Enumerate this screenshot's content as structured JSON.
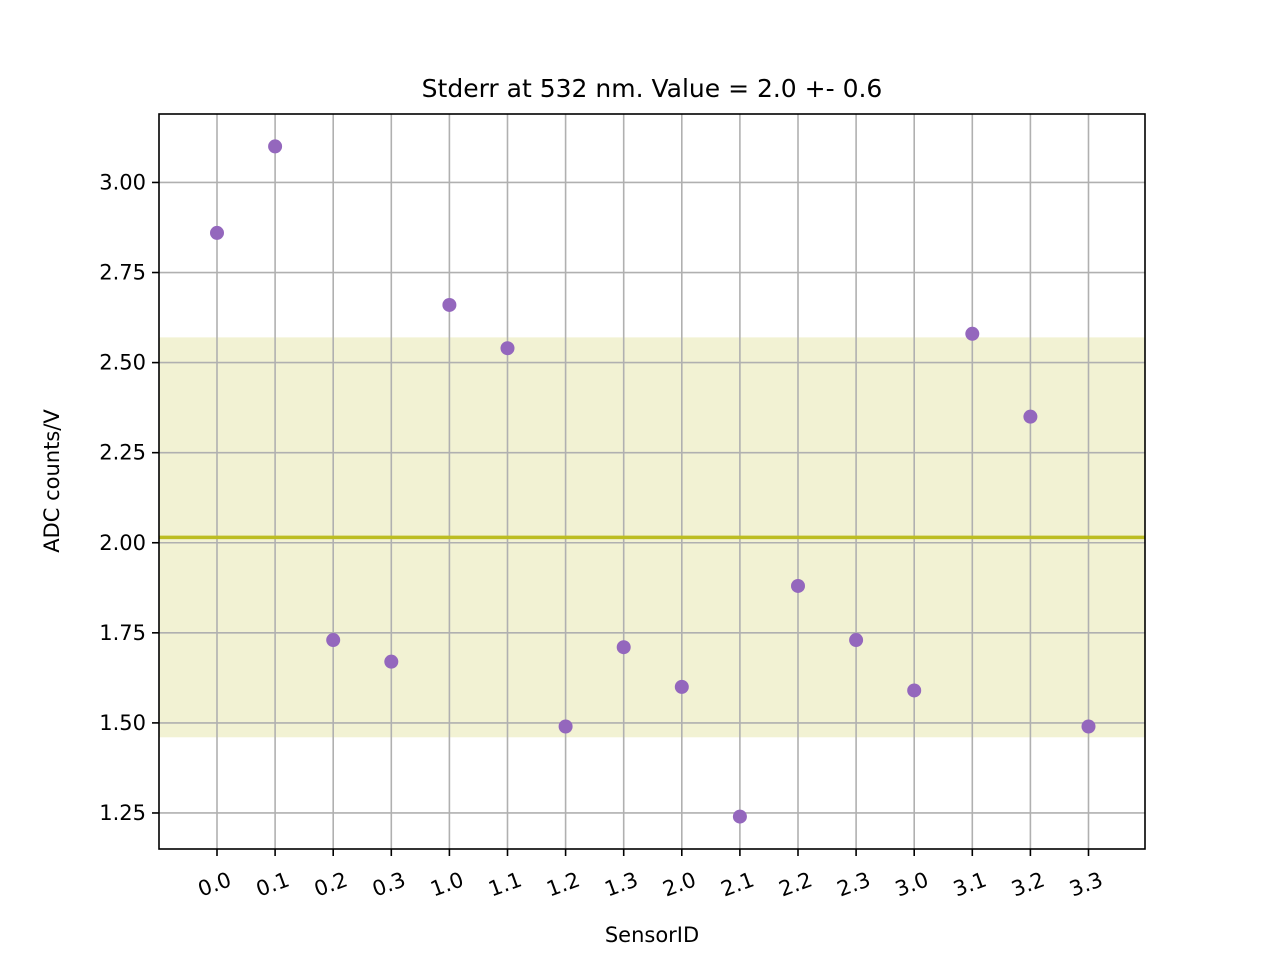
{
  "chart_data": {
    "type": "scatter",
    "title": "Stderr at 532 nm. Value = 2.0 +- 0.6",
    "xlabel": "SensorID",
    "ylabel": "ADC counts/V",
    "categories": [
      "0.0",
      "0.1",
      "0.2",
      "0.3",
      "1.0",
      "1.1",
      "1.2",
      "1.3",
      "2.0",
      "2.1",
      "2.2",
      "2.3",
      "3.0",
      "3.1",
      "3.2",
      "3.3"
    ],
    "series": [
      {
        "values": [
          2.86,
          3.1,
          1.73,
          1.67,
          2.66,
          2.54,
          1.49,
          1.71,
          1.6,
          1.24,
          1.88,
          1.73,
          1.59,
          2.58,
          2.35,
          1.49
        ],
        "color": "#9467bd"
      }
    ],
    "mean_line": {
      "value": 2.015,
      "color": "#bcbd22"
    },
    "band": {
      "lower": 1.46,
      "upper": 2.57,
      "color": "#bcbd22",
      "opacity": 0.2
    },
    "ylim": [
      1.15,
      3.19
    ],
    "yticks": [
      "1.25",
      "1.50",
      "1.75",
      "2.00",
      "2.25",
      "2.50",
      "2.75",
      "3.00"
    ],
    "grid": true,
    "legend": "none"
  }
}
